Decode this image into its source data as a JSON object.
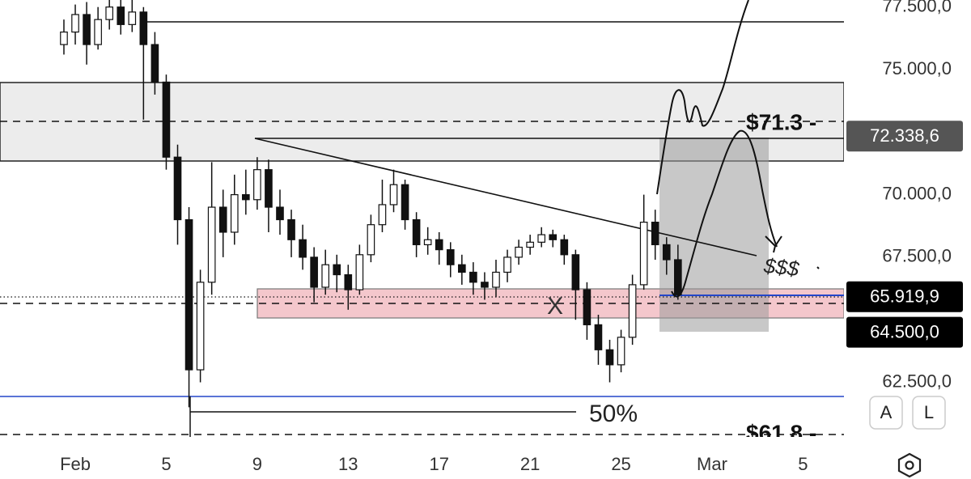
{
  "chart_data": {
    "type": "candlestick",
    "x": [
      -0.5,
      0,
      0.5,
      1,
      1.5,
      2,
      2.5,
      3,
      3.5,
      4,
      4.5,
      5,
      5.5,
      6,
      6.5,
      7,
      7.5,
      8,
      8.5,
      9,
      9.5,
      10,
      10.5,
      11,
      11.5,
      12,
      12.5,
      13,
      13.5,
      14,
      14.5,
      15,
      15.5,
      16,
      16.5,
      17,
      17.5,
      18,
      18.5,
      19,
      19.5,
      20,
      20.5,
      21,
      21.5,
      22,
      22.5,
      23,
      23.5,
      24,
      24.5,
      25,
      25.5,
      26,
      26.5
    ],
    "open": [
      76000,
      76500,
      77200,
      76000,
      77000,
      77500,
      76800,
      77300,
      76000,
      74500,
      71500,
      69000,
      63000,
      66500,
      69500,
      68500,
      70000,
      69800,
      71000,
      69500,
      69000,
      68200,
      67500,
      66300,
      67200,
      66800,
      66200,
      67600,
      68800,
      69600,
      70400,
      69000,
      68000,
      68200,
      67800,
      67200,
      66900,
      66500,
      66300,
      66900,
      67500,
      67900,
      68100,
      68400,
      68200,
      67600,
      66200,
      64800,
      63800,
      63200,
      64300,
      66400,
      68900,
      68000,
      67400
    ],
    "high": [
      77000,
      77600,
      77700,
      77500,
      77800,
      77800,
      77800,
      77500,
      76500,
      74800,
      72000,
      69500,
      67000,
      71300,
      70200,
      70800,
      71000,
      71500,
      71400,
      70200,
      69400,
      68800,
      67900,
      67800,
      67600,
      67200,
      68000,
      69200,
      70600,
      71000,
      70600,
      69300,
      68700,
      68500,
      68100,
      67600,
      67300,
      66900,
      67400,
      67800,
      68200,
      68400,
      68700,
      68600,
      68400,
      67800,
      66500,
      65200,
      64200,
      64600,
      66800,
      70000,
      69400,
      68300,
      68000
    ],
    "low": [
      75600,
      76000,
      75200,
      75800,
      76600,
      76400,
      76500,
      73000,
      74000,
      71000,
      68000,
      61500,
      62500,
      66000,
      67500,
      68000,
      69200,
      69400,
      68500,
      68400,
      67500,
      67000,
      65700,
      66000,
      66100,
      65400,
      66000,
      67300,
      68500,
      69300,
      68600,
      67500,
      67600,
      67200,
      66700,
      66400,
      66000,
      65800,
      65900,
      66500,
      67200,
      67600,
      67900,
      67900,
      67200,
      65000,
      64200,
      63200,
      62500,
      62900,
      64000,
      66200,
      67400,
      66800,
      65800
    ],
    "close": [
      76500,
      77200,
      76000,
      77000,
      77500,
      76800,
      77300,
      76000,
      74500,
      71500,
      69000,
      63000,
      66500,
      69500,
      68500,
      70000,
      69800,
      71000,
      69500,
      69000,
      68200,
      67500,
      66300,
      67200,
      66800,
      66200,
      67600,
      68800,
      69600,
      70400,
      69000,
      68000,
      68200,
      67800,
      67200,
      66900,
      66500,
      66300,
      66900,
      67500,
      67900,
      68100,
      68400,
      68200,
      67600,
      66200,
      64800,
      63800,
      63200,
      64300,
      66400,
      68900,
      68000,
      67400,
      66000
    ],
    "color": "#111111",
    "xlim": [
      -3.31,
      33.8
    ],
    "ylim": [
      60317,
      77781
    ],
    "xticks": [
      {
        "value": 0,
        "label": "Feb"
      },
      {
        "value": 4,
        "label": "5"
      },
      {
        "value": 8,
        "label": "9"
      },
      {
        "value": 12,
        "label": "13"
      },
      {
        "value": 16,
        "label": "17"
      },
      {
        "value": 20,
        "label": "21"
      },
      {
        "value": 24,
        "label": "25"
      },
      {
        "value": 28,
        "label": "Mar"
      },
      {
        "value": 32,
        "label": "5"
      }
    ],
    "yticks": [
      {
        "value": 77500,
        "label": "77.500,0"
      },
      {
        "value": 75000,
        "label": "75.000,0"
      },
      {
        "value": 70000,
        "label": "70.000,0"
      },
      {
        "value": 67500,
        "label": "67.500,0"
      },
      {
        "value": 62500,
        "label": "62.500,0"
      }
    ],
    "grid": false,
    "price_labels": [
      {
        "value": 72338.6,
        "label": "72.338,6",
        "color": "#555555"
      },
      {
        "value": 65919.9,
        "label": "65.919,9",
        "color": "#000000"
      },
      {
        "value": 64500,
        "label": "64.500,0",
        "color": "#000000"
      }
    ],
    "annotations": [
      "$71.3 -",
      "$61.8 -",
      "50%",
      "X",
      "$$$"
    ],
    "buttons": [
      "A",
      "L"
    ]
  }
}
